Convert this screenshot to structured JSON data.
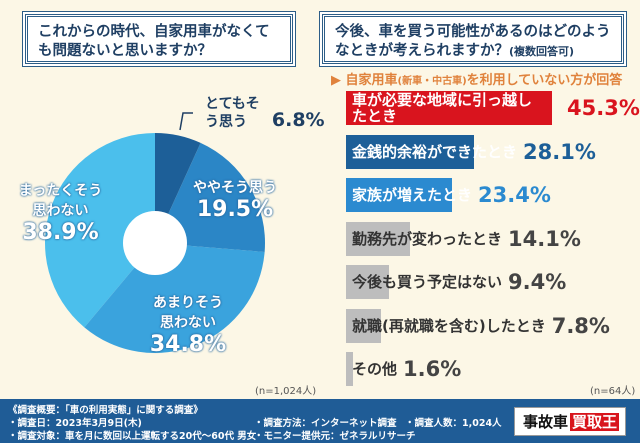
{
  "left": {
    "question": "これからの時代、自家用車がなくても問題ないと思いますか？",
    "n_label": "(n=1,024人)"
  },
  "right": {
    "question": "今後、車を買う可能性があるのはどのようなときが考えられますか？",
    "question_note": "(複数回答可)",
    "respondent_note": "▶ 自家用車",
    "respondent_note_sub": "(新車・中古車)",
    "respondent_note_tail": "を利用していない方が回答",
    "n_label": "(n=64人)"
  },
  "chart_data": [
    {
      "type": "pie",
      "donut": true,
      "categories": [
        "とてもそう思う",
        "ややそう思う",
        "あまりそう思わない",
        "まったくそう思わない"
      ],
      "values": [
        6.8,
        19.5,
        34.8,
        38.9
      ],
      "colors": [
        "#1d5f98",
        "#2b86c6",
        "#3aa3dd",
        "#4bbfec"
      ],
      "value_labels": [
        "6.8%",
        "19.5%",
        "34.8%",
        "38.9%"
      ]
    },
    {
      "type": "bar",
      "orientation": "horizontal",
      "categories": [
        "車が必要な地域に引っ越したとき",
        "金銭的余裕ができたとき",
        "家族が増えたとき",
        "勤務先が変わったとき",
        "今後も買う予定はない",
        "就職(再就職を含む)したとき",
        "その他"
      ],
      "values": [
        45.3,
        28.1,
        23.4,
        14.1,
        9.4,
        7.8,
        1.6
      ],
      "value_labels": [
        "45.3%",
        "28.1%",
        "23.4%",
        "14.1%",
        "9.4%",
        "7.8%",
        "1.6%"
      ],
      "colors": [
        "#d9141e",
        "#1d5f98",
        "#2b8ad0",
        "#bdbdbd",
        "#bdbdbd",
        "#bdbdbd",
        "#bdbdbd"
      ],
      "value_colors": [
        "#d9141e",
        "#1d5f98",
        "#2b8ad0",
        "#444444",
        "#444444",
        "#444444",
        "#444444"
      ]
    }
  ],
  "footer": {
    "overview": "《調査概要：「車の利用実態」に関する調査》",
    "date": "・調査日：2023年3月9日(木)",
    "target": "・調査対象：車を月に数回以上運転する20代〜60代 男女",
    "method": "・調査方法：インターネット調査",
    "provider": "・モニター提供元：ゼネラルリサーチ",
    "count": "・調査人数：1,024人",
    "logo_a": "事故車",
    "logo_b": "買取王"
  }
}
